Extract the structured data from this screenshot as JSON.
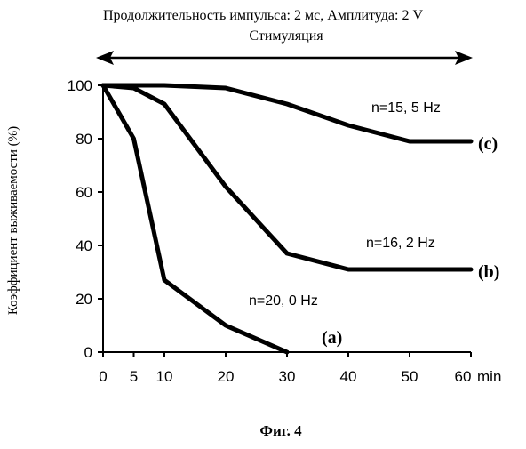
{
  "header": {
    "line1": "Продолжительность импульса: 2 мс, Амплитуда: 2 V",
    "line2": "Стимуляция"
  },
  "figure_caption": "Фиг. 4",
  "chart_data": {
    "type": "line",
    "title": "Продолжительность импульса: 2 мс, Амплитуда: 2 V",
    "subtitle": "Стимуляция",
    "xlabel": "",
    "x_unit": "min",
    "ylabel": "Коэффициент выживаемости (%)",
    "xlim": [
      0,
      60
    ],
    "ylim": [
      0,
      100
    ],
    "x_ticks": [
      0,
      5,
      10,
      20,
      30,
      40,
      50,
      60
    ],
    "y_ticks": [
      0,
      20,
      40,
      60,
      80,
      100
    ],
    "grid": false,
    "stimulation_range": [
      0,
      60
    ],
    "series": [
      {
        "id": "a",
        "label": "(a)",
        "annotation": "n=20, 0 Hz",
        "color": "#000000",
        "points": [
          [
            0,
            100
          ],
          [
            5,
            80
          ],
          [
            10,
            27
          ],
          [
            20,
            10
          ],
          [
            30,
            0
          ]
        ]
      },
      {
        "id": "b",
        "label": "(b)",
        "annotation": "n=16, 2 Hz",
        "color": "#000000",
        "points": [
          [
            0,
            100
          ],
          [
            5,
            99
          ],
          [
            10,
            93
          ],
          [
            20,
            62
          ],
          [
            30,
            37
          ],
          [
            40,
            31
          ],
          [
            50,
            31
          ],
          [
            60,
            31
          ]
        ]
      },
      {
        "id": "c",
        "label": "(c)",
        "annotation": "n=15, 5 Hz",
        "color": "#000000",
        "points": [
          [
            0,
            100
          ],
          [
            10,
            100
          ],
          [
            20,
            99
          ],
          [
            30,
            93
          ],
          [
            40,
            85
          ],
          [
            50,
            79
          ],
          [
            60,
            79
          ]
        ]
      }
    ]
  }
}
